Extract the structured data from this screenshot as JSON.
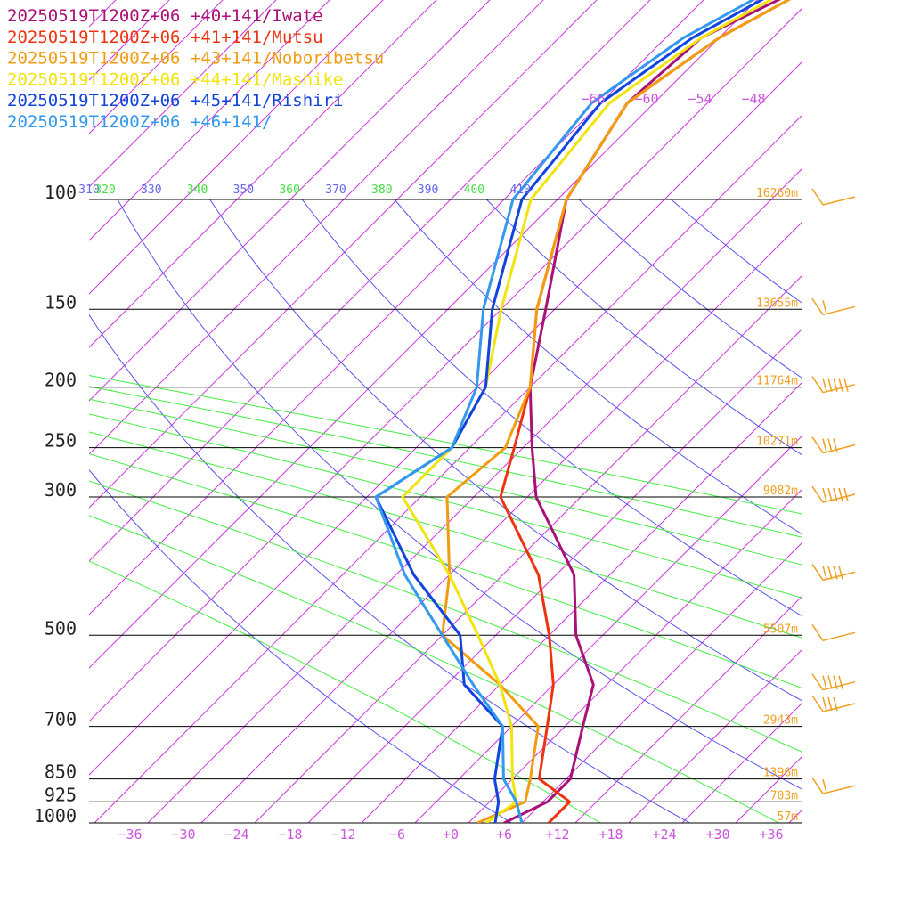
{
  "chart_data": {
    "type": "line",
    "subtype": "skew-T log-p sounding",
    "xlabel": "",
    "ylabel": "",
    "x_unit": "temperature (C)",
    "y_unit": "pressure (hPa)",
    "pressure_range": [
      1000,
      100
    ],
    "temperature_range": [
      -40,
      40
    ],
    "pressure_levels": [
      {
        "label": "100",
        "p": 100
      },
      {
        "label": "150",
        "p": 150
      },
      {
        "label": "200",
        "p": 200
      },
      {
        "label": "250",
        "p": 250
      },
      {
        "label": "300",
        "p": 300
      },
      {
        "label": "500",
        "p": 500
      },
      {
        "label": "700",
        "p": 700
      },
      {
        "label": "850",
        "p": 850
      },
      {
        "label": "925",
        "p": 925
      },
      {
        "label": "1000",
        "p": 1000
      }
    ],
    "temperature_ticks": [
      {
        "label": "−36",
        "t": -36
      },
      {
        "label": "−30",
        "t": -30
      },
      {
        "label": "−24",
        "t": -24
      },
      {
        "label": "−18",
        "t": -18
      },
      {
        "label": "−12",
        "t": -12
      },
      {
        "label": "−6",
        "t": -6
      },
      {
        "label": "+0",
        "t": 0
      },
      {
        "label": "+6",
        "t": 6
      },
      {
        "label": "+12",
        "t": 12
      },
      {
        "label": "+18",
        "t": 18
      },
      {
        "label": "+24",
        "t": 24
      },
      {
        "label": "+30",
        "t": 30
      },
      {
        "label": "+36",
        "t": 36
      }
    ],
    "theta_labels": [
      {
        "label": "310",
        "theta": 310
      },
      {
        "label": "320",
        "theta": 320
      },
      {
        "label": "330",
        "theta": 330
      },
      {
        "label": "340",
        "theta": 340
      },
      {
        "label": "350",
        "theta": 350
      },
      {
        "label": "360",
        "theta": 360
      },
      {
        "label": "370",
        "theta": 370
      },
      {
        "label": "380",
        "theta": 380
      },
      {
        "label": "390",
        "theta": 390
      },
      {
        "label": "400",
        "theta": 400
      },
      {
        "label": "410",
        "theta": 410
      }
    ],
    "upper_labels": [
      {
        "label": "−66",
        "t": -66
      },
      {
        "label": "−60",
        "t": -60
      },
      {
        "label": "−54",
        "t": -54
      },
      {
        "label": "−48",
        "t": -48
      }
    ],
    "heights": [
      {
        "p": 100,
        "label": "16260m"
      },
      {
        "p": 150,
        "label": "13655m"
      },
      {
        "p": 200,
        "label": "11764m"
      },
      {
        "p": 250,
        "label": "10271m"
      },
      {
        "p": 300,
        "label": "9082m"
      },
      {
        "p": 500,
        "label": "5507m"
      },
      {
        "p": 700,
        "label": "2943m"
      },
      {
        "p": 850,
        "label": "1396m"
      },
      {
        "p": 925,
        "label": "703m"
      },
      {
        "p": 1000,
        "label": "57m"
      }
    ],
    "wind_barbs": [
      {
        "p": 100,
        "barbs": 1
      },
      {
        "p": 150,
        "barbs": 2
      },
      {
        "p": 200,
        "barbs": 6
      },
      {
        "p": 250,
        "barbs": 4
      },
      {
        "p": 300,
        "barbs": 6
      },
      {
        "p": 400,
        "barbs": 5
      },
      {
        "p": 500,
        "barbs": 1
      },
      {
        "p": 600,
        "barbs": 5
      },
      {
        "p": 650,
        "barbs": 4
      },
      {
        "p": 880,
        "barbs": 2
      }
    ],
    "series": [
      {
        "name": "20250519T1200Z+06 +40+141/Iwate",
        "color": "#aa1177",
        "values": [
          {
            "p": 1000,
            "t": 6
          },
          {
            "p": 925,
            "t": 8.5
          },
          {
            "p": 850,
            "t": 8.5
          },
          {
            "p": 700,
            "t": 4
          },
          {
            "p": 600,
            "t": 0.5
          },
          {
            "p": 500,
            "t": -7
          },
          {
            "p": 400,
            "t": -14
          },
          {
            "p": 300,
            "t": -27
          },
          {
            "p": 250,
            "t": -33
          },
          {
            "p": 200,
            "t": -40
          },
          {
            "p": 150,
            "t": -47
          },
          {
            "p": 100,
            "t": -57
          },
          {
            "p": 70,
            "t": -61
          },
          {
            "p": 55,
            "t": -60
          },
          {
            "p": 40,
            "t": -50
          }
        ]
      },
      {
        "name": "20250519T1200Z+06 +41+141/Mutsu",
        "color": "#ee3311",
        "values": [
          {
            "p": 1000,
            "t": 11
          },
          {
            "p": 925,
            "t": 11
          },
          {
            "p": 850,
            "t": 5
          },
          {
            "p": 700,
            "t": 0
          },
          {
            "p": 600,
            "t": -4
          },
          {
            "p": 500,
            "t": -10
          },
          {
            "p": 400,
            "t": -18
          },
          {
            "p": 300,
            "t": -31
          },
          {
            "p": 250,
            "t": -35
          },
          {
            "p": 200,
            "t": -40
          },
          {
            "p": 150,
            "t": -48
          },
          {
            "p": 100,
            "t": -57
          },
          {
            "p": 70,
            "t": -61
          },
          {
            "p": 55,
            "t": -58
          },
          {
            "p": 40,
            "t": -50
          }
        ]
      },
      {
        "name": "20250519T1200Z+06 +43+141/Noboribetsu",
        "color": "#f39c12",
        "values": [
          {
            "p": 1000,
            "t": 3
          },
          {
            "p": 925,
            "t": 6
          },
          {
            "p": 850,
            "t": 4
          },
          {
            "p": 700,
            "t": -1
          },
          {
            "p": 600,
            "t": -10
          },
          {
            "p": 500,
            "t": -22
          },
          {
            "p": 400,
            "t": -28
          },
          {
            "p": 300,
            "t": -37
          },
          {
            "p": 250,
            "t": -36
          },
          {
            "p": 200,
            "t": -40
          },
          {
            "p": 150,
            "t": -48
          },
          {
            "p": 100,
            "t": -57
          },
          {
            "p": 70,
            "t": -61
          },
          {
            "p": 55,
            "t": -58
          },
          {
            "p": 40,
            "t": -50
          }
        ]
      },
      {
        "name": "20250519T1200Z+06 +44+141/Mashike",
        "color": "#f1e40f",
        "values": [
          {
            "p": 1000,
            "t": 4
          },
          {
            "p": 925,
            "t": 5
          },
          {
            "p": 850,
            "t": 2
          },
          {
            "p": 700,
            "t": -4
          },
          {
            "p": 600,
            "t": -10
          },
          {
            "p": 500,
            "t": -18
          },
          {
            "p": 400,
            "t": -28
          },
          {
            "p": 300,
            "t": -42
          },
          {
            "p": 250,
            "t": -42
          },
          {
            "p": 200,
            "t": -45
          },
          {
            "p": 150,
            "t": -52
          },
          {
            "p": 100,
            "t": -61
          },
          {
            "p": 70,
            "t": -63
          },
          {
            "p": 55,
            "t": -60
          },
          {
            "p": 40,
            "t": -52
          }
        ]
      },
      {
        "name": "20250519T1200Z+06 +45+141/Rishiri",
        "color": "#1144dd",
        "values": [
          {
            "p": 1000,
            "t": 5
          },
          {
            "p": 925,
            "t": 3
          },
          {
            "p": 850,
            "t": 0
          },
          {
            "p": 700,
            "t": -5
          },
          {
            "p": 600,
            "t": -14
          },
          {
            "p": 500,
            "t": -20
          },
          {
            "p": 400,
            "t": -32
          },
          {
            "p": 300,
            "t": -45
          },
          {
            "p": 250,
            "t": -42
          },
          {
            "p": 200,
            "t": -45
          },
          {
            "p": 150,
            "t": -53
          },
          {
            "p": 100,
            "t": -62
          },
          {
            "p": 70,
            "t": -64
          },
          {
            "p": 55,
            "t": -61
          },
          {
            "p": 40,
            "t": -53
          }
        ]
      },
      {
        "name": "20250519T1200Z+06 +46+141/",
        "color": "#3399ee",
        "values": [
          {
            "p": 1000,
            "t": 8
          },
          {
            "p": 925,
            "t": 5
          },
          {
            "p": 850,
            "t": 1
          },
          {
            "p": 700,
            "t": -5
          },
          {
            "p": 600,
            "t": -13
          },
          {
            "p": 500,
            "t": -22
          },
          {
            "p": 400,
            "t": -33
          },
          {
            "p": 300,
            "t": -45
          },
          {
            "p": 250,
            "t": -42
          },
          {
            "p": 200,
            "t": -46
          },
          {
            "p": 150,
            "t": -54
          },
          {
            "p": 100,
            "t": -63
          },
          {
            "p": 70,
            "t": -65
          },
          {
            "p": 55,
            "t": -62
          },
          {
            "p": 40,
            "t": -54
          }
        ]
      }
    ],
    "colors": {
      "isotherm": "#cc33dd",
      "dry_adiabat": "#5555ee",
      "moist_adiabat": "#44ee44",
      "isobar": "#000000",
      "height_label": "#f0a020",
      "wind_barb": "#f0a020"
    },
    "grid": true
  }
}
